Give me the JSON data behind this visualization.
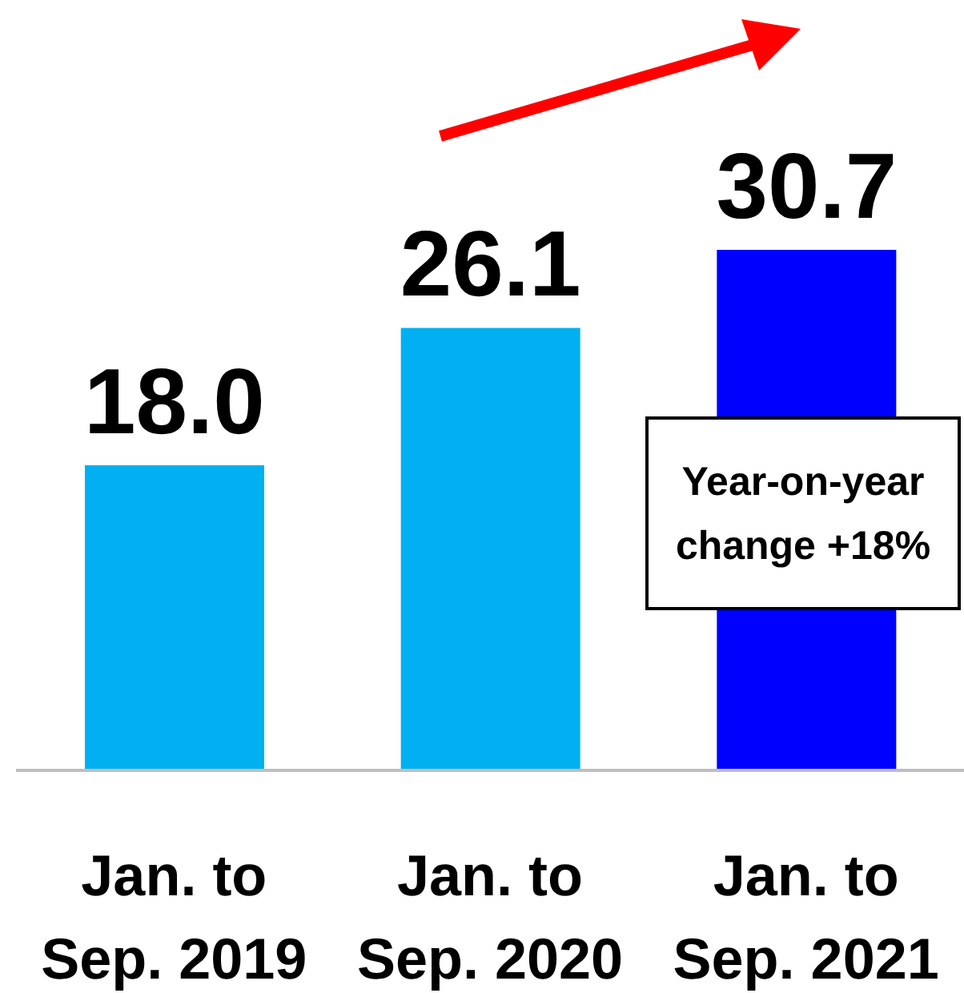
{
  "chart_data": {
    "type": "bar",
    "categories": [
      "Jan. to Sep. 2019",
      "Jan. to Sep. 2020",
      "Jan. to Sep. 2021"
    ],
    "values": [
      18.0,
      26.1,
      30.7
    ],
    "colors": [
      "#00b0f0",
      "#00b0f0",
      "#0000ff"
    ],
    "value_labels": [
      "18.0",
      "26.1",
      "30.7"
    ],
    "annotations": [
      "Year-on-year change +18%"
    ]
  }
}
